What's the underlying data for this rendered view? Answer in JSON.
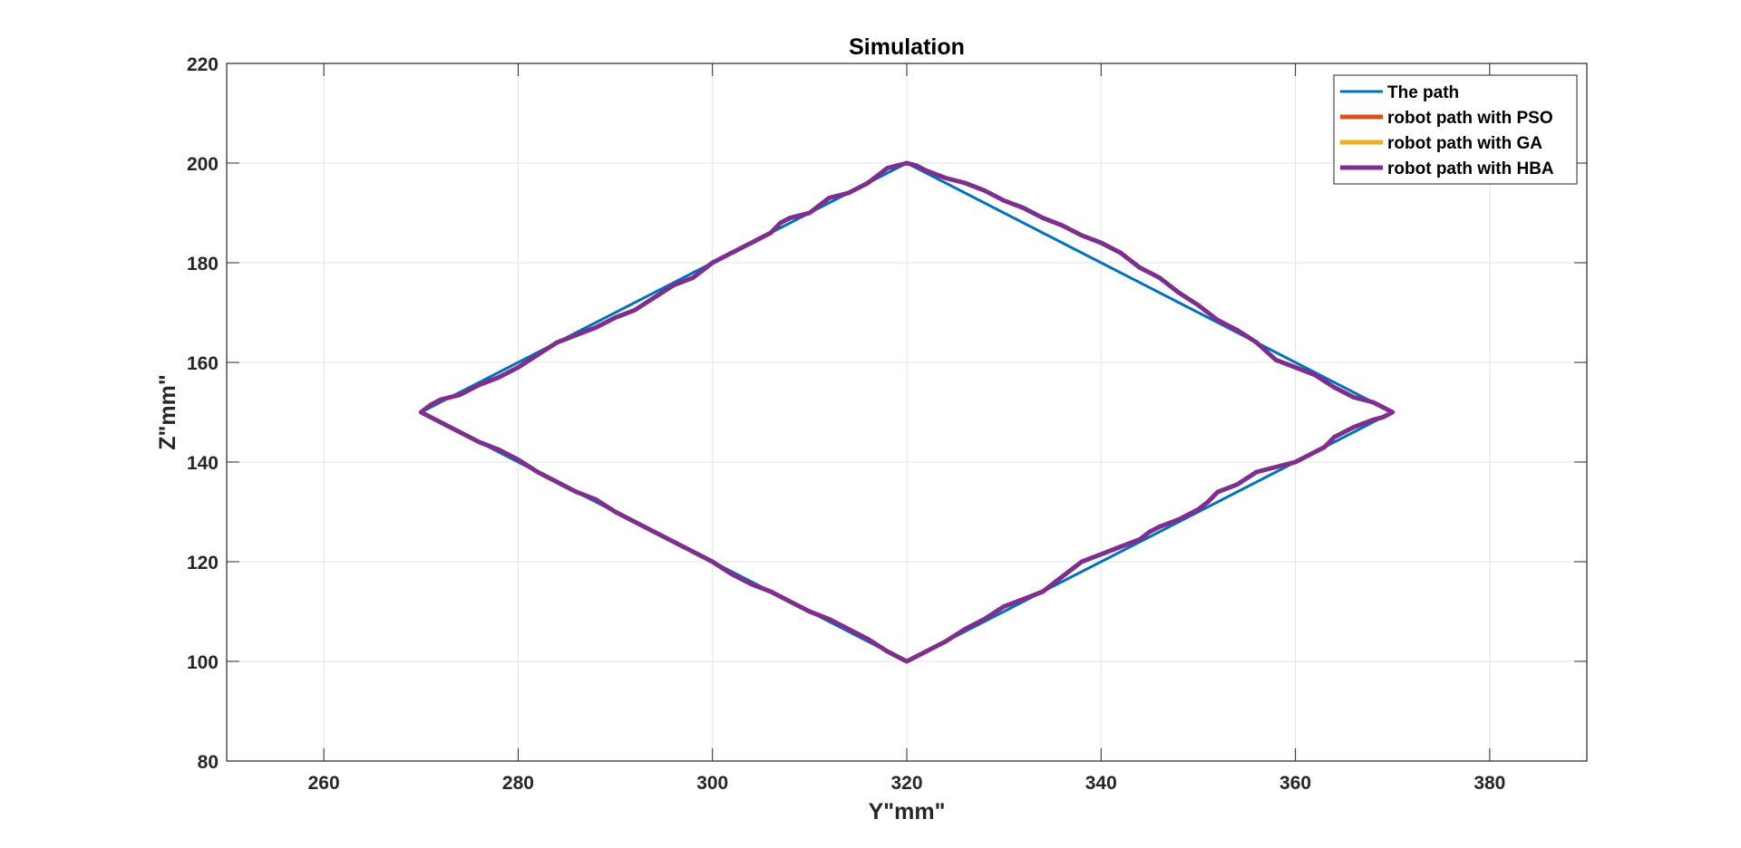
{
  "chart_data": {
    "type": "line",
    "title": "Simulation",
    "xlabel": "Y\"mm\"",
    "ylabel": "Z\"mm\"",
    "xlim": [
      250,
      390
    ],
    "ylim": [
      80,
      220
    ],
    "x_ticks": [
      260,
      280,
      300,
      320,
      340,
      360,
      380
    ],
    "y_ticks": [
      80,
      100,
      120,
      140,
      160,
      180,
      200,
      220
    ],
    "grid": true,
    "legend_position": "top-right",
    "series": [
      {
        "name": "The path",
        "color": "#0072BD",
        "x": [
          320,
          370,
          320,
          270,
          320
        ],
        "y": [
          200,
          150,
          100,
          150,
          200
        ]
      },
      {
        "name": "robot path with PSO",
        "color": "#D95319",
        "x": [],
        "y": []
      },
      {
        "name": "robot path with GA",
        "color": "#EDB120",
        "x": [],
        "y": []
      },
      {
        "name": "robot path with HBA",
        "color": "#7E2F8E",
        "x": [
          320,
          321,
          322,
          324,
          326,
          328,
          330,
          332,
          334,
          336,
          338,
          340,
          342,
          344,
          346,
          348,
          350,
          352,
          354,
          356,
          358,
          360,
          362,
          364,
          366,
          368,
          369,
          370,
          369,
          368,
          366,
          364,
          363,
          362,
          360,
          358,
          356,
          354,
          352,
          351,
          350,
          348,
          346,
          345,
          344,
          342,
          340,
          338,
          336,
          334,
          332,
          330,
          328,
          326,
          324,
          322,
          321,
          320,
          319,
          318,
          316,
          314,
          312,
          310,
          309,
          308,
          306,
          304,
          302,
          300,
          298,
          296,
          294,
          292,
          290,
          288,
          286,
          284,
          282,
          280,
          278,
          276,
          274,
          272,
          271,
          270,
          271,
          272,
          274,
          276,
          278,
          280,
          282,
          284,
          286,
          288,
          290,
          292,
          294,
          296,
          298,
          300,
          302,
          304,
          306,
          307,
          308,
          310,
          312,
          314,
          316,
          317,
          318,
          319,
          320
        ],
        "y": [
          200,
          199.5,
          198.5,
          197,
          196,
          194.5,
          192.5,
          191,
          189,
          187.5,
          185.5,
          184,
          182,
          179,
          177,
          174,
          171.5,
          168.5,
          166.5,
          164,
          160.5,
          159,
          157.5,
          155,
          153,
          152,
          151,
          150,
          149,
          148.5,
          147,
          145,
          143,
          142,
          140,
          139,
          138,
          135.5,
          134,
          132,
          130.5,
          128.5,
          127,
          126,
          124.5,
          123,
          121.5,
          120,
          117,
          114,
          112.5,
          111,
          108.5,
          106.5,
          104,
          102,
          101,
          100,
          101,
          102,
          104.5,
          106.5,
          108.5,
          110,
          111,
          112,
          114,
          115.5,
          117.5,
          120,
          122,
          124,
          126,
          128,
          130,
          132.5,
          134,
          136,
          138,
          140.5,
          142.5,
          144,
          146,
          148,
          149,
          150,
          151.5,
          152.5,
          153.5,
          155.5,
          157,
          159,
          161.5,
          164,
          165.5,
          167,
          169,
          170.5,
          173,
          175.5,
          177,
          180,
          182,
          184,
          186,
          188,
          189,
          190,
          193,
          194,
          196,
          197.5,
          199,
          199.5,
          200
        ]
      }
    ]
  }
}
